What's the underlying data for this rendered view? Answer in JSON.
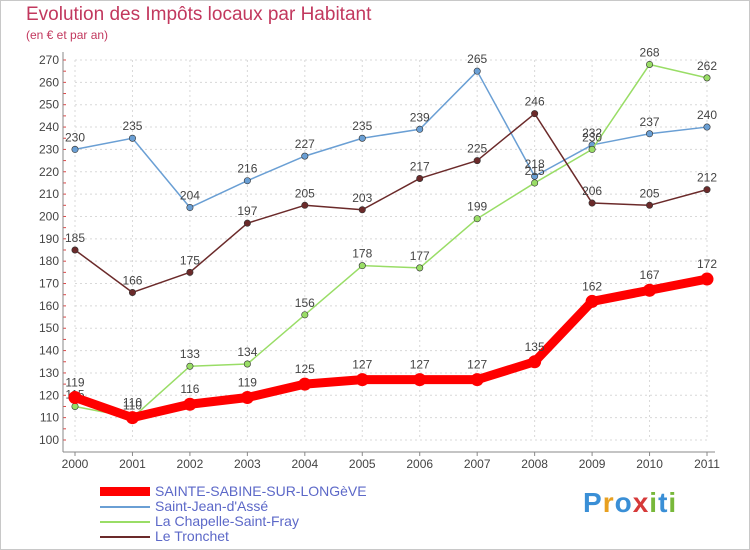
{
  "title": "Evolution des Impôts locaux par Habitant",
  "subtitle": "(en € et par an)",
  "logo": {
    "text": "Proxiti",
    "colors": [
      "#3a8fd6",
      "#e8a020",
      "#3a8fd6",
      "#d63a3a",
      "#78b83a",
      "#3a8fd6",
      "#78b83a"
    ]
  },
  "colors": {
    "title": "#c2385e",
    "grid": "#d8d8d8",
    "axis": "#888888",
    "tick_text": "#444444",
    "legend_text": "#5c68c8"
  },
  "chart_data": {
    "type": "line",
    "title": "Evolution des Impôts locaux par Habitant",
    "subtitle": "(en € et par an)",
    "x": [
      "2000",
      "2001",
      "2002",
      "2003",
      "2004",
      "2005",
      "2006",
      "2007",
      "2008",
      "2009",
      "2010",
      "2011"
    ],
    "ylim": [
      100,
      270
    ],
    "yticks": [
      100,
      110,
      120,
      130,
      140,
      150,
      160,
      170,
      180,
      190,
      200,
      210,
      220,
      230,
      240,
      250,
      260,
      270
    ],
    "grid": "horizontal dashed",
    "legend_position": "bottom-left",
    "series": [
      {
        "name": "SAINTE-SABINE-SUR-LONGèVE",
        "color": "#ff0000",
        "values": [
          119,
          110,
          116,
          119,
          125,
          127,
          127,
          127,
          135,
          162,
          167,
          172
        ],
        "labels": [
          "119",
          "110",
          "116",
          "119",
          "125",
          "127",
          "127",
          "127",
          "135",
          "162",
          "167",
          "172"
        ],
        "style": "thick"
      },
      {
        "name": "Saint-Jean-d'Assé",
        "color": "#6a9fd4",
        "values": [
          230,
          235,
          204,
          216,
          227,
          235,
          239,
          265,
          218,
          232,
          237,
          240
        ],
        "labels": [
          "230",
          "235",
          "204",
          "216",
          "227",
          "235",
          "239",
          "265",
          "218",
          "232",
          "237",
          "240"
        ],
        "style": "thin"
      },
      {
        "name": "La Chapelle-Saint-Fray",
        "color": "#99dd66",
        "values": [
          115,
          110,
          133,
          134,
          156,
          178,
          177,
          199,
          215,
          230,
          268,
          262
        ],
        "labels": [
          "115",
          "110",
          "133",
          "134",
          "156",
          "178",
          "177",
          "199",
          "215",
          "230",
          "268",
          "262"
        ],
        "style": "thin"
      },
      {
        "name": "Le Tronchet",
        "color": "#6b2a2a",
        "values": [
          185,
          166,
          175,
          197,
          205,
          203,
          217,
          225,
          246,
          206,
          205,
          212
        ],
        "labels": [
          "185",
          "166",
          "175",
          "197",
          "205",
          "203",
          "217",
          "225",
          "246",
          "206",
          "205",
          "212"
        ],
        "style": "thin"
      }
    ]
  },
  "legend": [
    {
      "label": "SAINTE-SABINE-SUR-LONGèVE",
      "color": "#ff0000"
    },
    {
      "label": "Saint-Jean-d'Assé",
      "color": "#6a9fd4"
    },
    {
      "label": "La Chapelle-Saint-Fray",
      "color": "#99dd66"
    },
    {
      "label": "Le Tronchet",
      "color": "#6b2a2a"
    }
  ]
}
